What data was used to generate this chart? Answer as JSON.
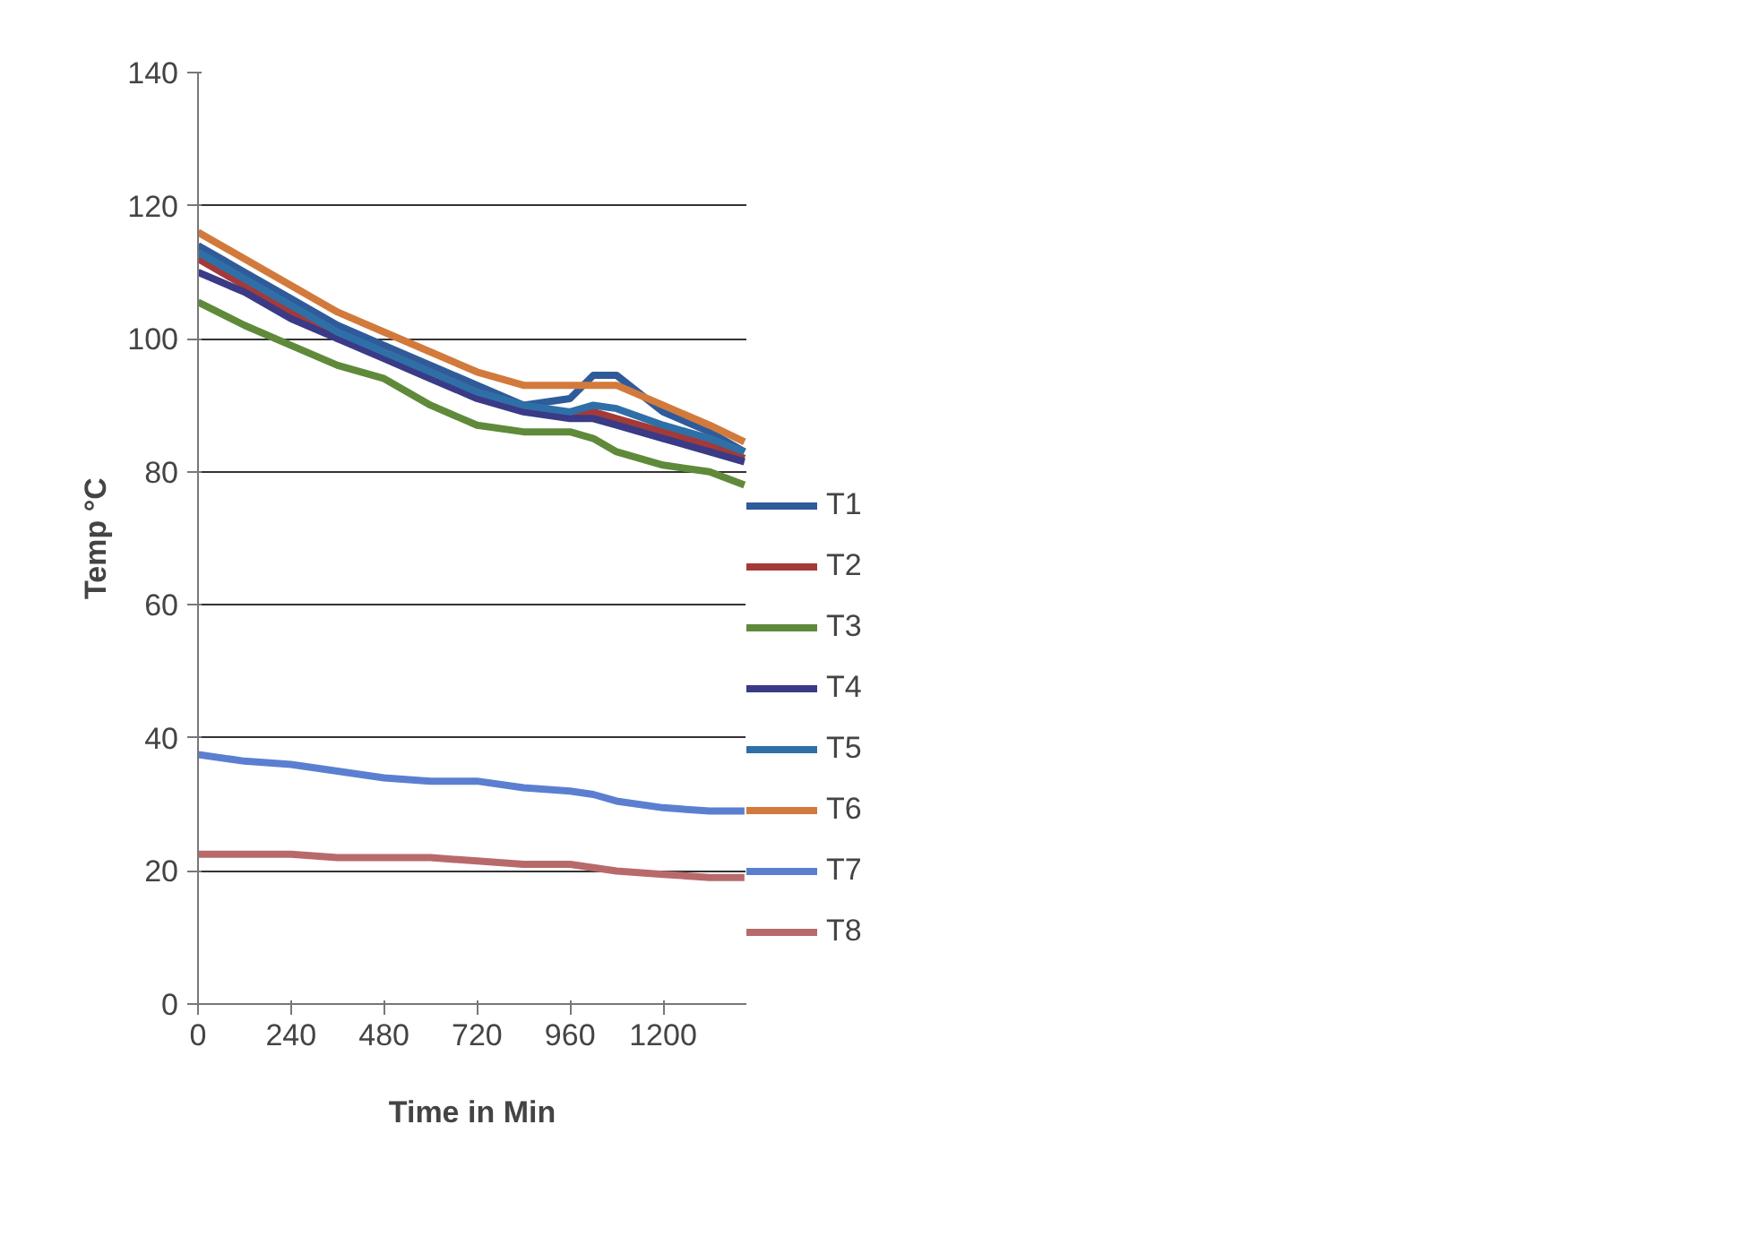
{
  "chart_data": {
    "type": "line",
    "xlabel": "Time in Min",
    "ylabel": "Temp °C",
    "x": [
      0,
      120,
      240,
      360,
      480,
      600,
      720,
      840,
      960,
      1020,
      1080,
      1200,
      1320,
      1410
    ],
    "xlim": [
      0,
      1415
    ],
    "xticks": [
      0,
      240,
      480,
      720,
      960,
      1200
    ],
    "ylim": [
      0,
      140
    ],
    "yticks": [
      0,
      20,
      40,
      60,
      80,
      100,
      120,
      140
    ],
    "grid": "y",
    "legend": "right",
    "marker": "none",
    "line_style": "solid",
    "series": [
      {
        "name": "T1",
        "color": "#2f5b9a",
        "values": [
          114,
          110,
          106,
          102,
          99,
          96,
          93,
          90,
          91,
          94.5,
          94.5,
          89,
          86,
          83
        ]
      },
      {
        "name": "T2",
        "color": "#a33a38",
        "values": [
          112,
          108,
          104,
          100,
          98,
          95,
          92,
          89.5,
          88.5,
          89,
          88,
          86,
          84,
          82
        ]
      },
      {
        "name": "T3",
        "color": "#5f8a3a",
        "values": [
          105.5,
          102,
          99,
          96,
          94,
          90,
          87,
          86,
          86,
          85,
          83,
          81,
          80,
          78
        ]
      },
      {
        "name": "T4",
        "color": "#3a3a86",
        "values": [
          110,
          107,
          103,
          100,
          97,
          94,
          91,
          89,
          88,
          88,
          87,
          85,
          83,
          81.5
        ]
      },
      {
        "name": "T5",
        "color": "#2f6fa8",
        "values": [
          113,
          109,
          105,
          101,
          98,
          95,
          92,
          90,
          89,
          90,
          89.5,
          87,
          85,
          83
        ]
      },
      {
        "name": "T6",
        "color": "#d27a3c",
        "values": [
          116,
          112,
          108,
          104,
          101,
          98,
          95,
          93,
          93,
          93,
          93,
          90,
          87,
          84.5
        ]
      },
      {
        "name": "T7",
        "color": "#5b7fd0",
        "values": [
          37.5,
          36.5,
          36,
          35,
          34,
          33.5,
          33.5,
          32.5,
          32,
          31.5,
          30.5,
          29.5,
          29,
          29
        ]
      },
      {
        "name": "T8",
        "color": "#b86a6a",
        "values": [
          22.5,
          22.5,
          22.5,
          22,
          22,
          22,
          21.5,
          21,
          21,
          20.5,
          20,
          19.5,
          19,
          19
        ]
      }
    ]
  }
}
